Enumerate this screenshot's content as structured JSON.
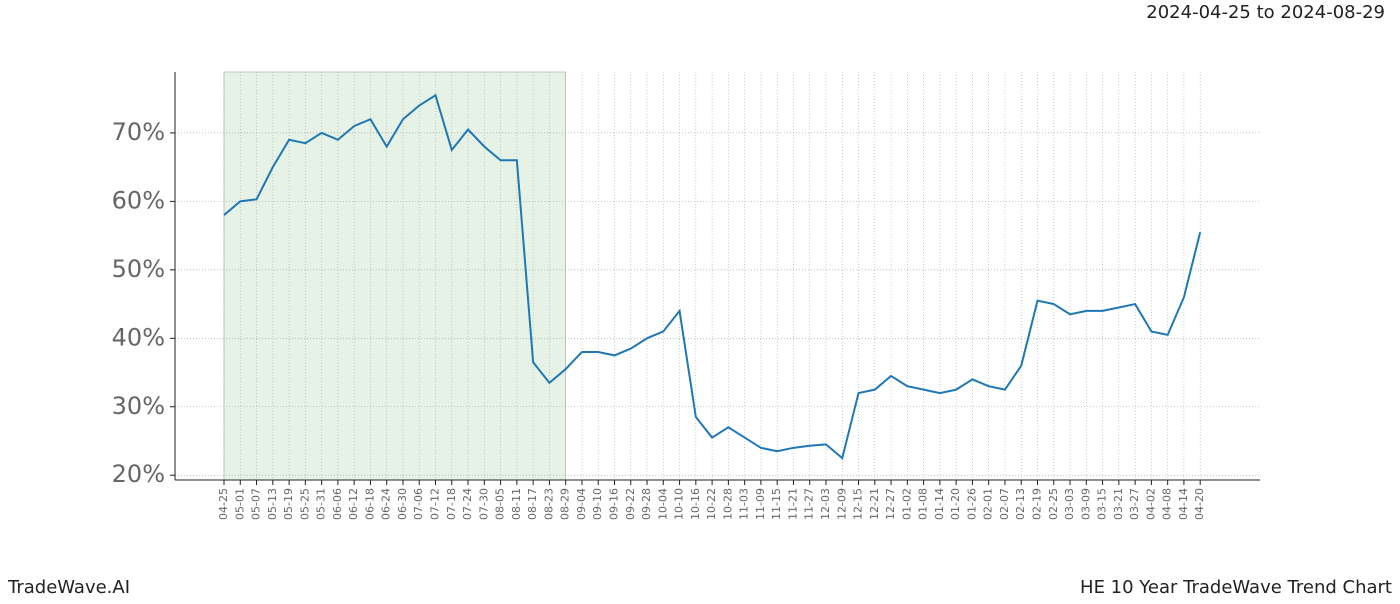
{
  "header": {
    "range": "2024-04-25 to 2024-08-29"
  },
  "footer": {
    "brand": "TradeWave.AI",
    "title": "HE 10 Year TradeWave Trend Chart"
  },
  "chart_data": {
    "type": "line",
    "color": "#1f77b4",
    "grid": true,
    "shade": {
      "from": 0,
      "to": 21,
      "color": "#e6f2e6"
    },
    "categories": [
      "04-25",
      "05-01",
      "05-07",
      "05-13",
      "05-19",
      "05-25",
      "05-31",
      "06-06",
      "06-12",
      "06-18",
      "06-24",
      "06-30",
      "07-06",
      "07-12",
      "07-18",
      "07-24",
      "07-30",
      "08-05",
      "08-11",
      "08-17",
      "08-23",
      "08-29",
      "09-04",
      "09-10",
      "09-16",
      "09-22",
      "09-28",
      "10-04",
      "10-10",
      "10-16",
      "10-22",
      "10-28",
      "11-03",
      "11-09",
      "11-15",
      "11-21",
      "11-27",
      "12-03",
      "12-09",
      "12-15",
      "12-21",
      "12-27",
      "01-02",
      "01-08",
      "01-14",
      "01-20",
      "01-26",
      "02-01",
      "02-07",
      "02-13",
      "02-19",
      "02-25",
      "03-03",
      "03-09",
      "03-15",
      "03-21",
      "03-27",
      "04-02",
      "04-08",
      "04-14",
      "04-20"
    ],
    "values": [
      58,
      60,
      60.3,
      65,
      69,
      68.5,
      70,
      69,
      71,
      72,
      68,
      72,
      74,
      75.5,
      67.5,
      70.5,
      68,
      66,
      66,
      36.5,
      33.5,
      35.5,
      38,
      38,
      37.5,
      38.5,
      40,
      41,
      44,
      28.5,
      25.5,
      27,
      25.5,
      24,
      23.5,
      24,
      24.3,
      24.5,
      22.5,
      32,
      32.5,
      34.5,
      33,
      32.5,
      32,
      32.5,
      34,
      33,
      32.5,
      36,
      45.5,
      45,
      43.5,
      44,
      44,
      44.5,
      45,
      41,
      40.5,
      46,
      55.5
    ],
    "ylim": [
      19.3,
      78.9
    ],
    "yticks": [
      {
        "value": 20,
        "label": "20%"
      },
      {
        "value": 30,
        "label": "30%"
      },
      {
        "value": 40,
        "label": "40%"
      },
      {
        "value": 50,
        "label": "50%"
      },
      {
        "value": 60,
        "label": "60%"
      },
      {
        "value": 70,
        "label": "70%"
      }
    ]
  }
}
